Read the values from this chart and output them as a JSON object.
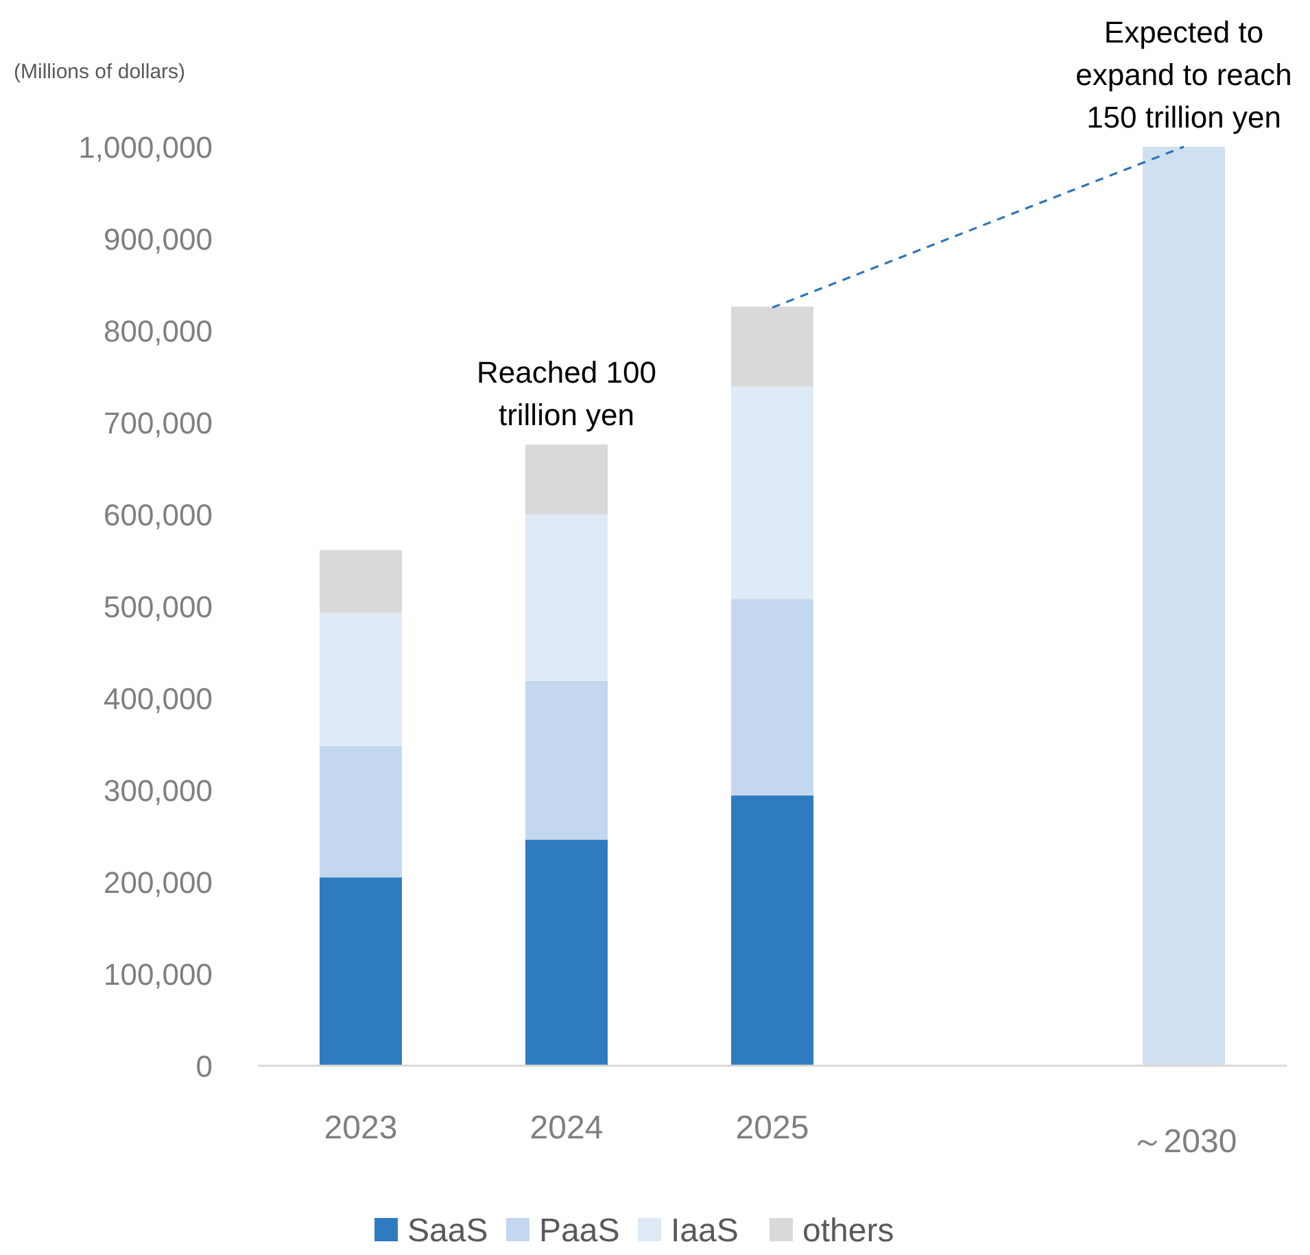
{
  "chart_data": {
    "type": "bar",
    "stacked": true,
    "ylabel": "(Millions of dollars)",
    "categories": [
      "2023",
      "2024",
      "2025",
      null,
      "～2030"
    ],
    "series": [
      {
        "name": "SaaS",
        "color": "#2f7bbf",
        "values": [
          205000,
          246000,
          294000,
          null,
          null
        ]
      },
      {
        "name": "PaaS",
        "color": "#c3d8ee",
        "values": [
          143000,
          173000,
          214000,
          null,
          null
        ]
      },
      {
        "name": "IaaS",
        "color": "#deebf6",
        "values": [
          145000,
          181000,
          231000,
          null,
          null
        ]
      },
      {
        "name": "others",
        "color": "#d9d9d9",
        "values": [
          68000,
          76000,
          87000,
          null,
          null
        ]
      },
      {
        "color": "#cfe0f1",
        "values": [
          null,
          null,
          null,
          null,
          1000000
        ]
      },
      {
        "type": "line",
        "values": [
          null,
          null,
          825000,
          null,
          1000000
        ],
        "color": "#2e75b6",
        "line_style": "dashed"
      }
    ],
    "ylim": [
      0,
      1000000
    ],
    "yticks": [
      0,
      {
        "value": 100000,
        "label": "100,000"
      },
      {
        "value": 200000,
        "label": "200,000"
      },
      {
        "value": 300000,
        "label": "300,000"
      },
      {
        "value": 400000,
        "label": "400,000"
      },
      {
        "value": 500000,
        "label": "500,000"
      },
      {
        "value": 600000,
        "label": "600,000"
      },
      {
        "value": 700000,
        "label": "700,000"
      },
      {
        "value": 800000,
        "label": "800,000"
      },
      {
        "value": 900000,
        "label": "900,000"
      },
      {
        "value": 1000000,
        "label": "1,000,000"
      }
    ],
    "annotations": [
      {
        "text": "Reached 100\ntrillion yen",
        "x": "2024",
        "y": 676000
      },
      {
        "text": "Expected to\nexpand to reach\n150 trillion yen",
        "x": "～2030",
        "y": 1000000
      }
    ],
    "grid": false,
    "legend": "bottom"
  }
}
